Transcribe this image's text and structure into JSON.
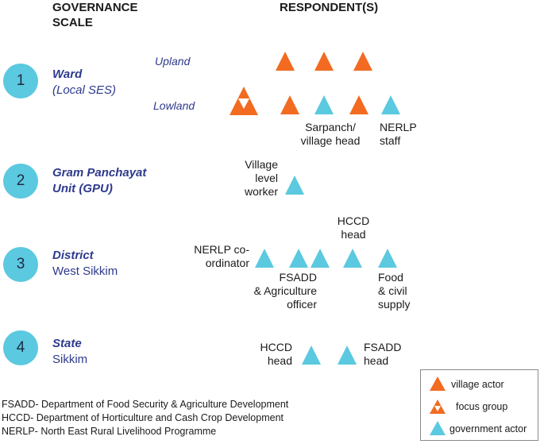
{
  "colors": {
    "village_actor": "#F26B21",
    "government_actor": "#5BC9DF",
    "level_circle": "#5BC9DF",
    "level_text": "#2E3A8C"
  },
  "headers": {
    "governance_scale_line1": "GOVERNANCE",
    "governance_scale_line2": "SCALE",
    "respondents": "RESPONDENT(S)"
  },
  "levels": [
    {
      "number": "1",
      "name": "Ward",
      "sub": "(Local SES)"
    },
    {
      "number": "2",
      "name": "Gram Panchayat",
      "sub": "Unit (GPU)"
    },
    {
      "number": "3",
      "name": "District",
      "sub": "West Sikkim"
    },
    {
      "number": "4",
      "name": "State",
      "sub": "Sikkim"
    }
  ],
  "zones": {
    "upland": "Upland",
    "lowland": "Lowland"
  },
  "labels": {
    "sarpanch_1": "Sarpanch/",
    "sarpanch_2": "village head",
    "nerlp_staff_1": "NERLP",
    "nerlp_staff_2": "staff",
    "vlw_1": "Village",
    "vlw_2": "level",
    "vlw_3": "worker",
    "nerlp_coord_1": "NERLP co-",
    "nerlp_coord_2": "ordinator",
    "hccd_head_1": "HCCD",
    "hccd_head_2": "head",
    "fsadd_1": "FSADD",
    "fsadd_2": "& Agriculture",
    "fsadd_3": "officer",
    "food_1": "Food",
    "food_2": "& civil",
    "food_3": "supply",
    "state_hccd_1": "HCCD",
    "state_hccd_2": "head",
    "state_fsadd_1": "FSADD",
    "state_fsadd_2": "head"
  },
  "legend": {
    "village_actor": "village actor",
    "focus_group": "focus group",
    "government_actor": "government actor"
  },
  "footnotes": [
    "FSADD- Department of Food Security & Agriculture Development",
    "HCCD- Department of Horticulture and Cash Crop Development",
    "NERLP- North East Rural Livelihood Programme"
  ]
}
